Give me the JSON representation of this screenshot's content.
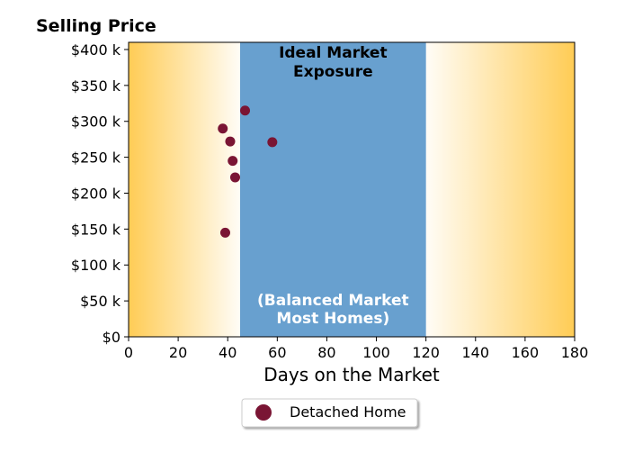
{
  "chart_data": {
    "type": "scatter",
    "title": "Selling Price",
    "xlabel": "Days on the Market",
    "ylabel": "",
    "xlim": [
      0,
      180
    ],
    "ylim": [
      0,
      410000
    ],
    "x_ticks": [
      0,
      20,
      40,
      60,
      80,
      100,
      120,
      140,
      160,
      180
    ],
    "x_tick_labels": [
      "0",
      "20",
      "40",
      "60",
      "80",
      "100",
      "120",
      "140",
      "160",
      "180"
    ],
    "y_ticks": [
      0,
      50000,
      100000,
      150000,
      200000,
      250000,
      300000,
      350000,
      400000
    ],
    "y_tick_labels": [
      "$0",
      "$50 k",
      "$100 k",
      "$150 k",
      "$200 k",
      "$250 k",
      "$300 k",
      "$350 k",
      "$400 k"
    ],
    "grid": false,
    "band": {
      "x_start": 45,
      "x_end": 120,
      "label_top_line1": "Ideal Market",
      "label_top_line2": "Exposure",
      "label_bottom_line1": "(Balanced Market",
      "label_bottom_line2": "Most Homes)",
      "color": "#68a0cf"
    },
    "background_gradient_color": "#ffcc55",
    "series": [
      {
        "name": "Detached Home",
        "color": "#7a1534",
        "points": [
          {
            "x": 47,
            "y": 315000
          },
          {
            "x": 38,
            "y": 290000
          },
          {
            "x": 41,
            "y": 272000
          },
          {
            "x": 58,
            "y": 271000
          },
          {
            "x": 42,
            "y": 245000
          },
          {
            "x": 43,
            "y": 222000
          },
          {
            "x": 39,
            "y": 145000
          }
        ]
      }
    ],
    "legend": {
      "placement": "bottom-center"
    }
  }
}
